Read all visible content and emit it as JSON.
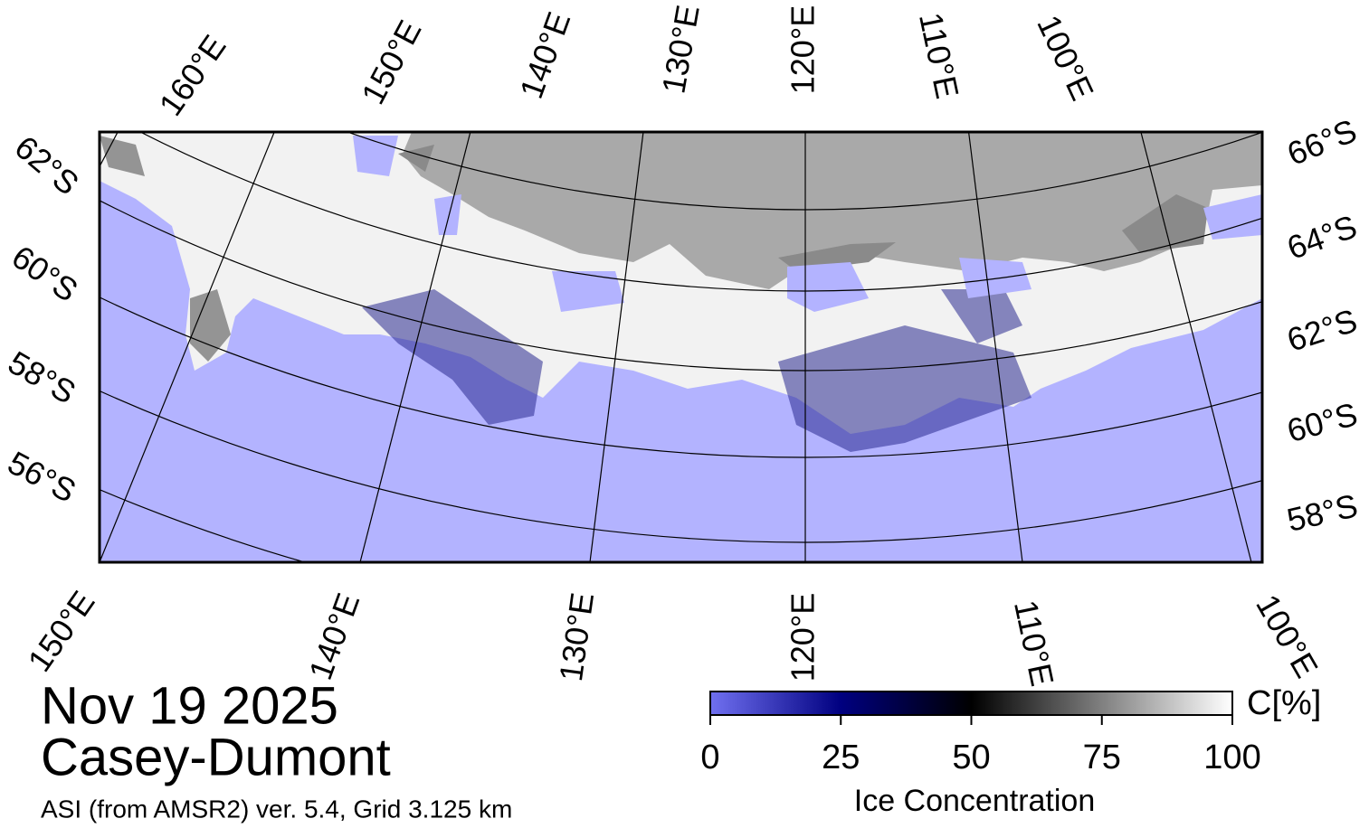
{
  "map": {
    "graticule": {
      "top": [
        "160°E",
        "150°E",
        "140°E",
        "130°E",
        "120°E",
        "110°E",
        "100°E"
      ],
      "left": [
        "62°S",
        "60°S",
        "58°S",
        "56°S"
      ],
      "right": [
        "66°S",
        "64°S",
        "62°S",
        "60°S",
        "58°S"
      ],
      "bottom": [
        "150°E",
        "140°E",
        "130°E",
        "120°E",
        "110°E",
        "100°E"
      ]
    },
    "title": {
      "date": "Nov 19 2025",
      "region": "Casey-Dumont",
      "source": "ASI (from AMSR2) ver. 5.4,  Grid 3.125 km"
    },
    "colorbar": {
      "lim": [
        0,
        100
      ],
      "ticks": [
        0,
        25,
        50,
        75,
        100
      ],
      "unit": "C[%]",
      "label": "Ice Concentration",
      "colors": [
        "#7070f0",
        "#000080",
        "#000000",
        "#808080",
        "#ffffff"
      ]
    }
  }
}
